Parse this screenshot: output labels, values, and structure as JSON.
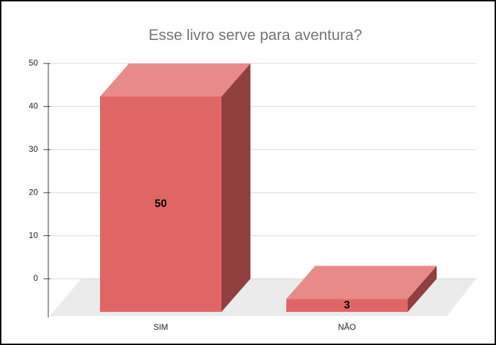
{
  "chart_data": {
    "type": "bar3d",
    "title": "Esse livro serve para aventura?",
    "categories": [
      "SIM",
      "NÃO"
    ],
    "values": [
      50,
      3
    ],
    "color": "#e06666",
    "ylim": [
      0,
      50
    ],
    "yticks": [
      0,
      10,
      20,
      30,
      40,
      50
    ],
    "grid": true
  }
}
